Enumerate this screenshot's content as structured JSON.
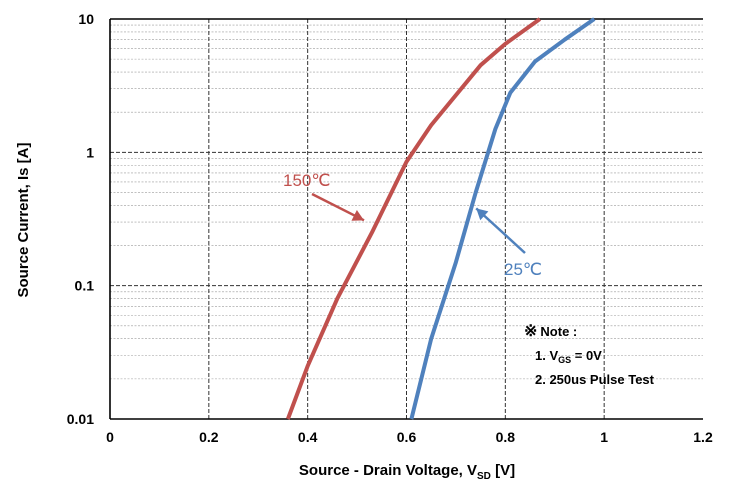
{
  "chart_data": {
    "type": "line",
    "title": "",
    "xlabel": {
      "main": "Source - Drain Voltage, V",
      "sub": "SD",
      "unit": " [V]"
    },
    "ylabel": "Source Current, Is [A]",
    "x_scale": "linear",
    "y_scale": "log",
    "xlim": [
      0,
      1.2
    ],
    "ylim": [
      0.01,
      10
    ],
    "x_ticks": [
      "0",
      "0.2",
      "0.4",
      "0.6",
      "0.8",
      "1",
      "1.2"
    ],
    "y_ticks": [
      "0.01",
      "0.1",
      "1",
      "10"
    ],
    "grid": true,
    "series": [
      {
        "name": "150℃",
        "color": "#c0504d",
        "x": [
          0.36,
          0.4,
          0.46,
          0.53,
          0.6,
          0.65,
          0.75,
          0.8,
          0.87
        ],
        "y": [
          0.01,
          0.025,
          0.08,
          0.25,
          0.85,
          1.6,
          4.5,
          6.5,
          10
        ]
      },
      {
        "name": "25℃",
        "color": "#4f81bd",
        "x": [
          0.61,
          0.65,
          0.7,
          0.74,
          0.78,
          0.81,
          0.86,
          0.92,
          0.98
        ],
        "y": [
          0.01,
          0.04,
          0.15,
          0.5,
          1.5,
          2.8,
          4.8,
          7,
          10
        ]
      }
    ],
    "annotations": {
      "note_title": "Note :",
      "note_symbol": "※",
      "note_line1_prefix": "1. V",
      "note_line1_sub": "GS",
      "note_line1_suffix": " = 0V",
      "note_line2": "2. 250us Pulse Test"
    }
  }
}
